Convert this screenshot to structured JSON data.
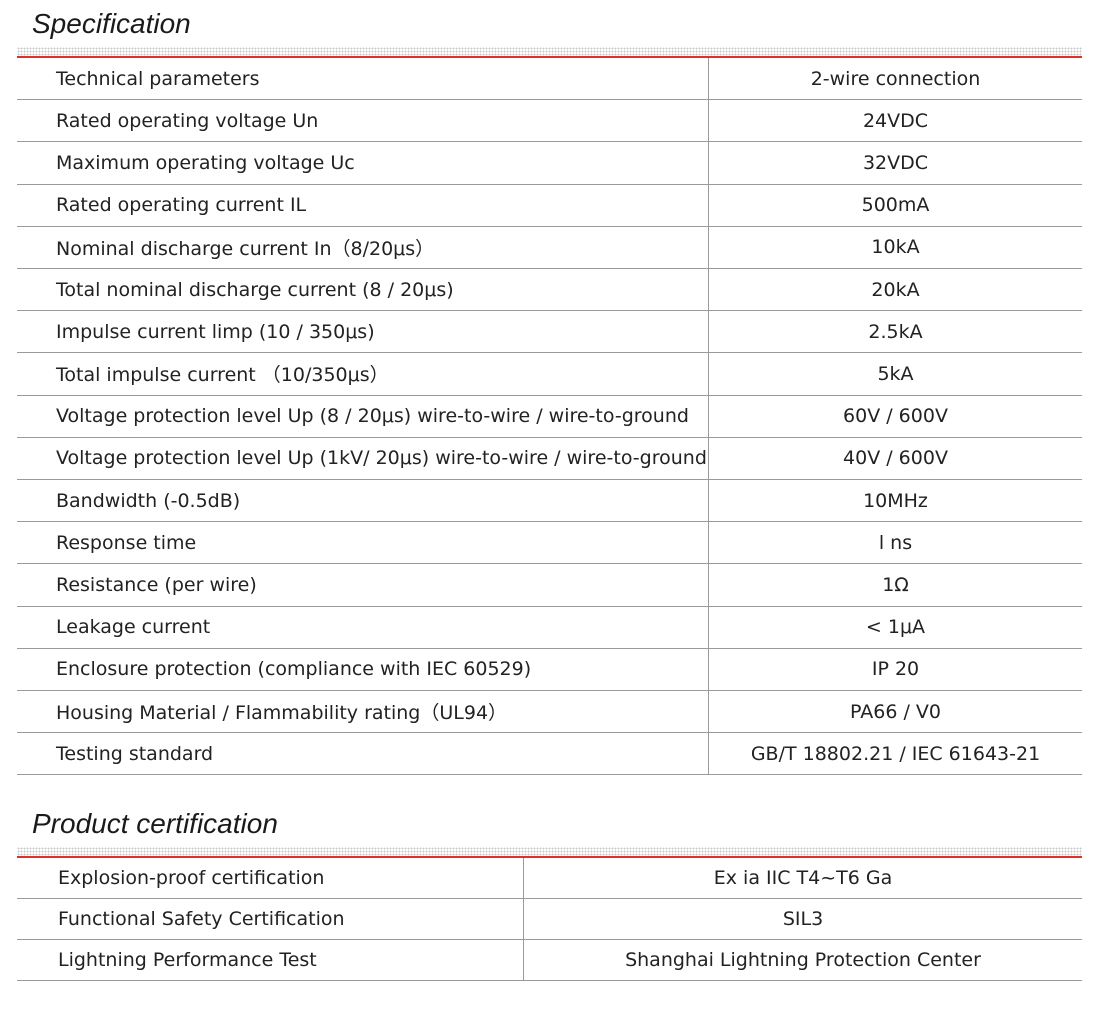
{
  "sections": [
    {
      "title": "Specification",
      "rows": [
        [
          "Technical parameters",
          "2-wire connection"
        ],
        [
          "Rated operating voltage Un",
          "24VDC"
        ],
        [
          "Maximum operating voltage Uc",
          "32VDC"
        ],
        [
          "Rated operating current IL",
          "500mA"
        ],
        [
          "Nominal discharge current In（8/20μs）",
          "10kA"
        ],
        [
          "Total nominal discharge current (8 / 20μs)",
          "20kA"
        ],
        [
          "Impulse current limp (10 / 350μs)",
          "2.5kA"
        ],
        [
          "Total impulse current （10/350μs）",
          "5kA"
        ],
        [
          "Voltage protection level Up (8 / 20μs) wire-to-wire / wire-to-ground",
          "60V / 600V"
        ],
        [
          "Voltage protection level Up (1kV/ 20μs) wire-to-wire / wire-to-ground",
          "40V / 600V"
        ],
        [
          "Bandwidth (-0.5dB)",
          "10MHz"
        ],
        [
          "Response  time",
          "l ns"
        ],
        [
          "Resistance (per wire)",
          "1Ω"
        ],
        [
          "Leakage current",
          "< 1μA"
        ],
        [
          "Enclosure protection (compliance with IEC 60529)",
          "IP 20"
        ],
        [
          "Housing Material / Flammability rating（UL94）",
          "PA66 / V0"
        ],
        [
          "Testing standard",
          "GB/T 18802.21 / IEC 61643-21"
        ]
      ]
    },
    {
      "title": "Product certification",
      "rows": [
        [
          "Explosion-proof certification",
          "Ex ia IIC T4~T6 Ga"
        ],
        [
          "Functional Safety Certification",
          "SIL3"
        ],
        [
          "Lightning Performance Test",
          "Shanghai Lightning Protection Center"
        ]
      ]
    }
  ]
}
